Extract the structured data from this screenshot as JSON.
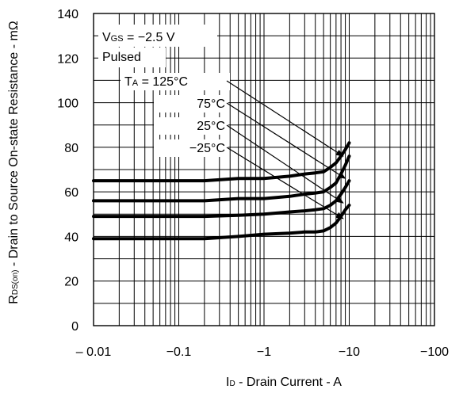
{
  "chart_data": {
    "type": "line",
    "xlabel": {
      "prefix": "I",
      "sub": "D",
      "rest": " - Drain Current - A"
    },
    "ylabel": {
      "prefix": "R",
      "sub": "DS(on)",
      "rest": " - Drain to Source On-state Resistance - mΩ"
    },
    "x_scale": "log",
    "xlim": [
      -0.01,
      -100
    ],
    "ylim": [
      0,
      140
    ],
    "x_ticks": [
      {
        "value": -0.01,
        "label": "– 0.01"
      },
      {
        "value": -0.1,
        "label": "−0.1"
      },
      {
        "value": -1,
        "label": "−1"
      },
      {
        "value": -10,
        "label": "−10"
      },
      {
        "value": -100,
        "label": "−100"
      }
    ],
    "y_ticks": [
      0,
      20,
      40,
      60,
      80,
      100,
      120,
      140
    ],
    "grid": true,
    "conditions": [
      {
        "prefix": "V",
        "sub": "GS",
        "rest": " = −2.5 V"
      },
      {
        "prefix": "Pulsed",
        "sub": "",
        "rest": ""
      }
    ],
    "series": [
      {
        "name": "125°C",
        "annotation": {
          "prefix": "T",
          "sub": "A",
          "rest": " = 125°C"
        },
        "x": [
          -0.01,
          -0.02,
          -0.05,
          -0.1,
          -0.2,
          -0.5,
          -1,
          -2,
          -3,
          -4,
          -5,
          -6,
          -7,
          -8,
          -9,
          -10
        ],
        "y": [
          65,
          65,
          65,
          65,
          65,
          66,
          66,
          67,
          68,
          68.5,
          69,
          71,
          73,
          76,
          79,
          82
        ]
      },
      {
        "name": "75°C",
        "annotation": {
          "prefix": "75°C",
          "sub": "",
          "rest": ""
        },
        "x": [
          -0.01,
          -0.02,
          -0.05,
          -0.1,
          -0.2,
          -0.5,
          -1,
          -2,
          -3,
          -4,
          -5,
          -6,
          -7,
          -8,
          -9,
          -10
        ],
        "y": [
          56,
          56,
          56,
          56,
          56,
          57,
          57,
          58,
          59,
          59.5,
          60,
          62,
          64,
          68,
          72,
          76
        ]
      },
      {
        "name": "25°C",
        "annotation": {
          "prefix": "25°C",
          "sub": "",
          "rest": ""
        },
        "x": [
          -0.01,
          -0.02,
          -0.05,
          -0.1,
          -0.2,
          -0.5,
          -1,
          -2,
          -3,
          -4,
          -5,
          -6,
          -7,
          -8,
          -9,
          -10
        ],
        "y": [
          49,
          49,
          49,
          49,
          49,
          49.5,
          50,
          51,
          51.5,
          52,
          52.5,
          54,
          56,
          59,
          62,
          65
        ]
      },
      {
        "name": "−25°C",
        "annotation": {
          "prefix": "−25°C",
          "sub": "",
          "rest": ""
        },
        "x": [
          -0.01,
          -0.02,
          -0.05,
          -0.1,
          -0.2,
          -0.5,
          -1,
          -2,
          -3,
          -4,
          -5,
          -6,
          -7,
          -8,
          -9,
          -10
        ],
        "y": [
          39,
          39,
          39,
          39,
          39,
          40,
          41,
          41.5,
          42,
          42,
          42.5,
          44,
          46,
          49,
          52,
          54
        ]
      }
    ],
    "annotation_targets": [
      {
        "x": -8.5,
        "y": 76
      },
      {
        "x": -9,
        "y": 66
      },
      {
        "x": -8.5,
        "y": 55
      },
      {
        "x": -8.5,
        "y": 48
      }
    ]
  }
}
